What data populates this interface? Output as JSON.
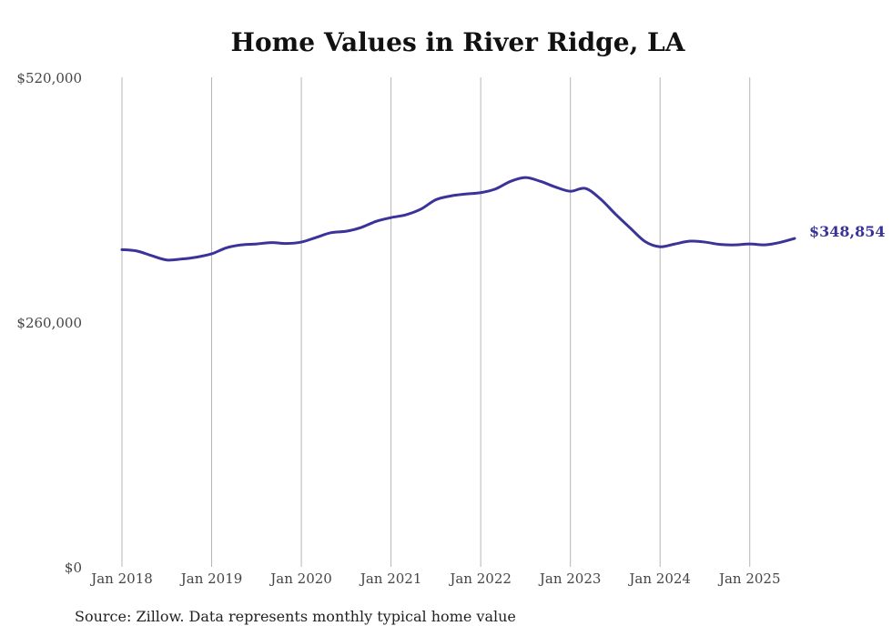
{
  "chart_data": {
    "type": "line",
    "title": "Home Values in River Ridge, LA",
    "xlabel": "",
    "ylabel": "",
    "ylim": [
      0,
      520000
    ],
    "y_ticks": [
      "$0",
      "$260,000",
      "$520,000"
    ],
    "y_tick_values": [
      0,
      260000,
      520000
    ],
    "x_ticks": [
      "Jan 2018",
      "Jan 2019",
      "Jan 2020",
      "Jan 2021",
      "Jan 2022",
      "Jan 2023",
      "Jan 2024",
      "Jan 2025"
    ],
    "x_tick_months": [
      0,
      12,
      24,
      36,
      48,
      60,
      72,
      84
    ],
    "x_range_months": [
      0,
      90
    ],
    "grid": "vertical",
    "series": [
      {
        "name": "Typical home value",
        "color": "#3a3399",
        "x_months": [
          0,
          2,
          4,
          6,
          8,
          10,
          12,
          14,
          16,
          18,
          20,
          22,
          24,
          26,
          28,
          30,
          32,
          34,
          36,
          38,
          40,
          42,
          44,
          46,
          48,
          50,
          52,
          54,
          56,
          58,
          60,
          62,
          64,
          66,
          68,
          70,
          72,
          74,
          76,
          78,
          80,
          82,
          84,
          86,
          88,
          90
        ],
        "values": [
          337000,
          335500,
          330500,
          326000,
          327000,
          329000,
          332500,
          339000,
          342000,
          343000,
          344500,
          343500,
          345000,
          350000,
          355000,
          356500,
          360500,
          367000,
          371000,
          374000,
          380000,
          390000,
          394000,
          396000,
          397500,
          401500,
          409500,
          413500,
          409500,
          403500,
          399000,
          402000,
          391000,
          375000,
          360000,
          345500,
          340000,
          343000,
          346000,
          345000,
          342500,
          342000,
          343000,
          342000,
          344500,
          348854
        ]
      }
    ],
    "end_label": "$348,854"
  },
  "source": "Source: Zillow. Data represents monthly typical home value"
}
